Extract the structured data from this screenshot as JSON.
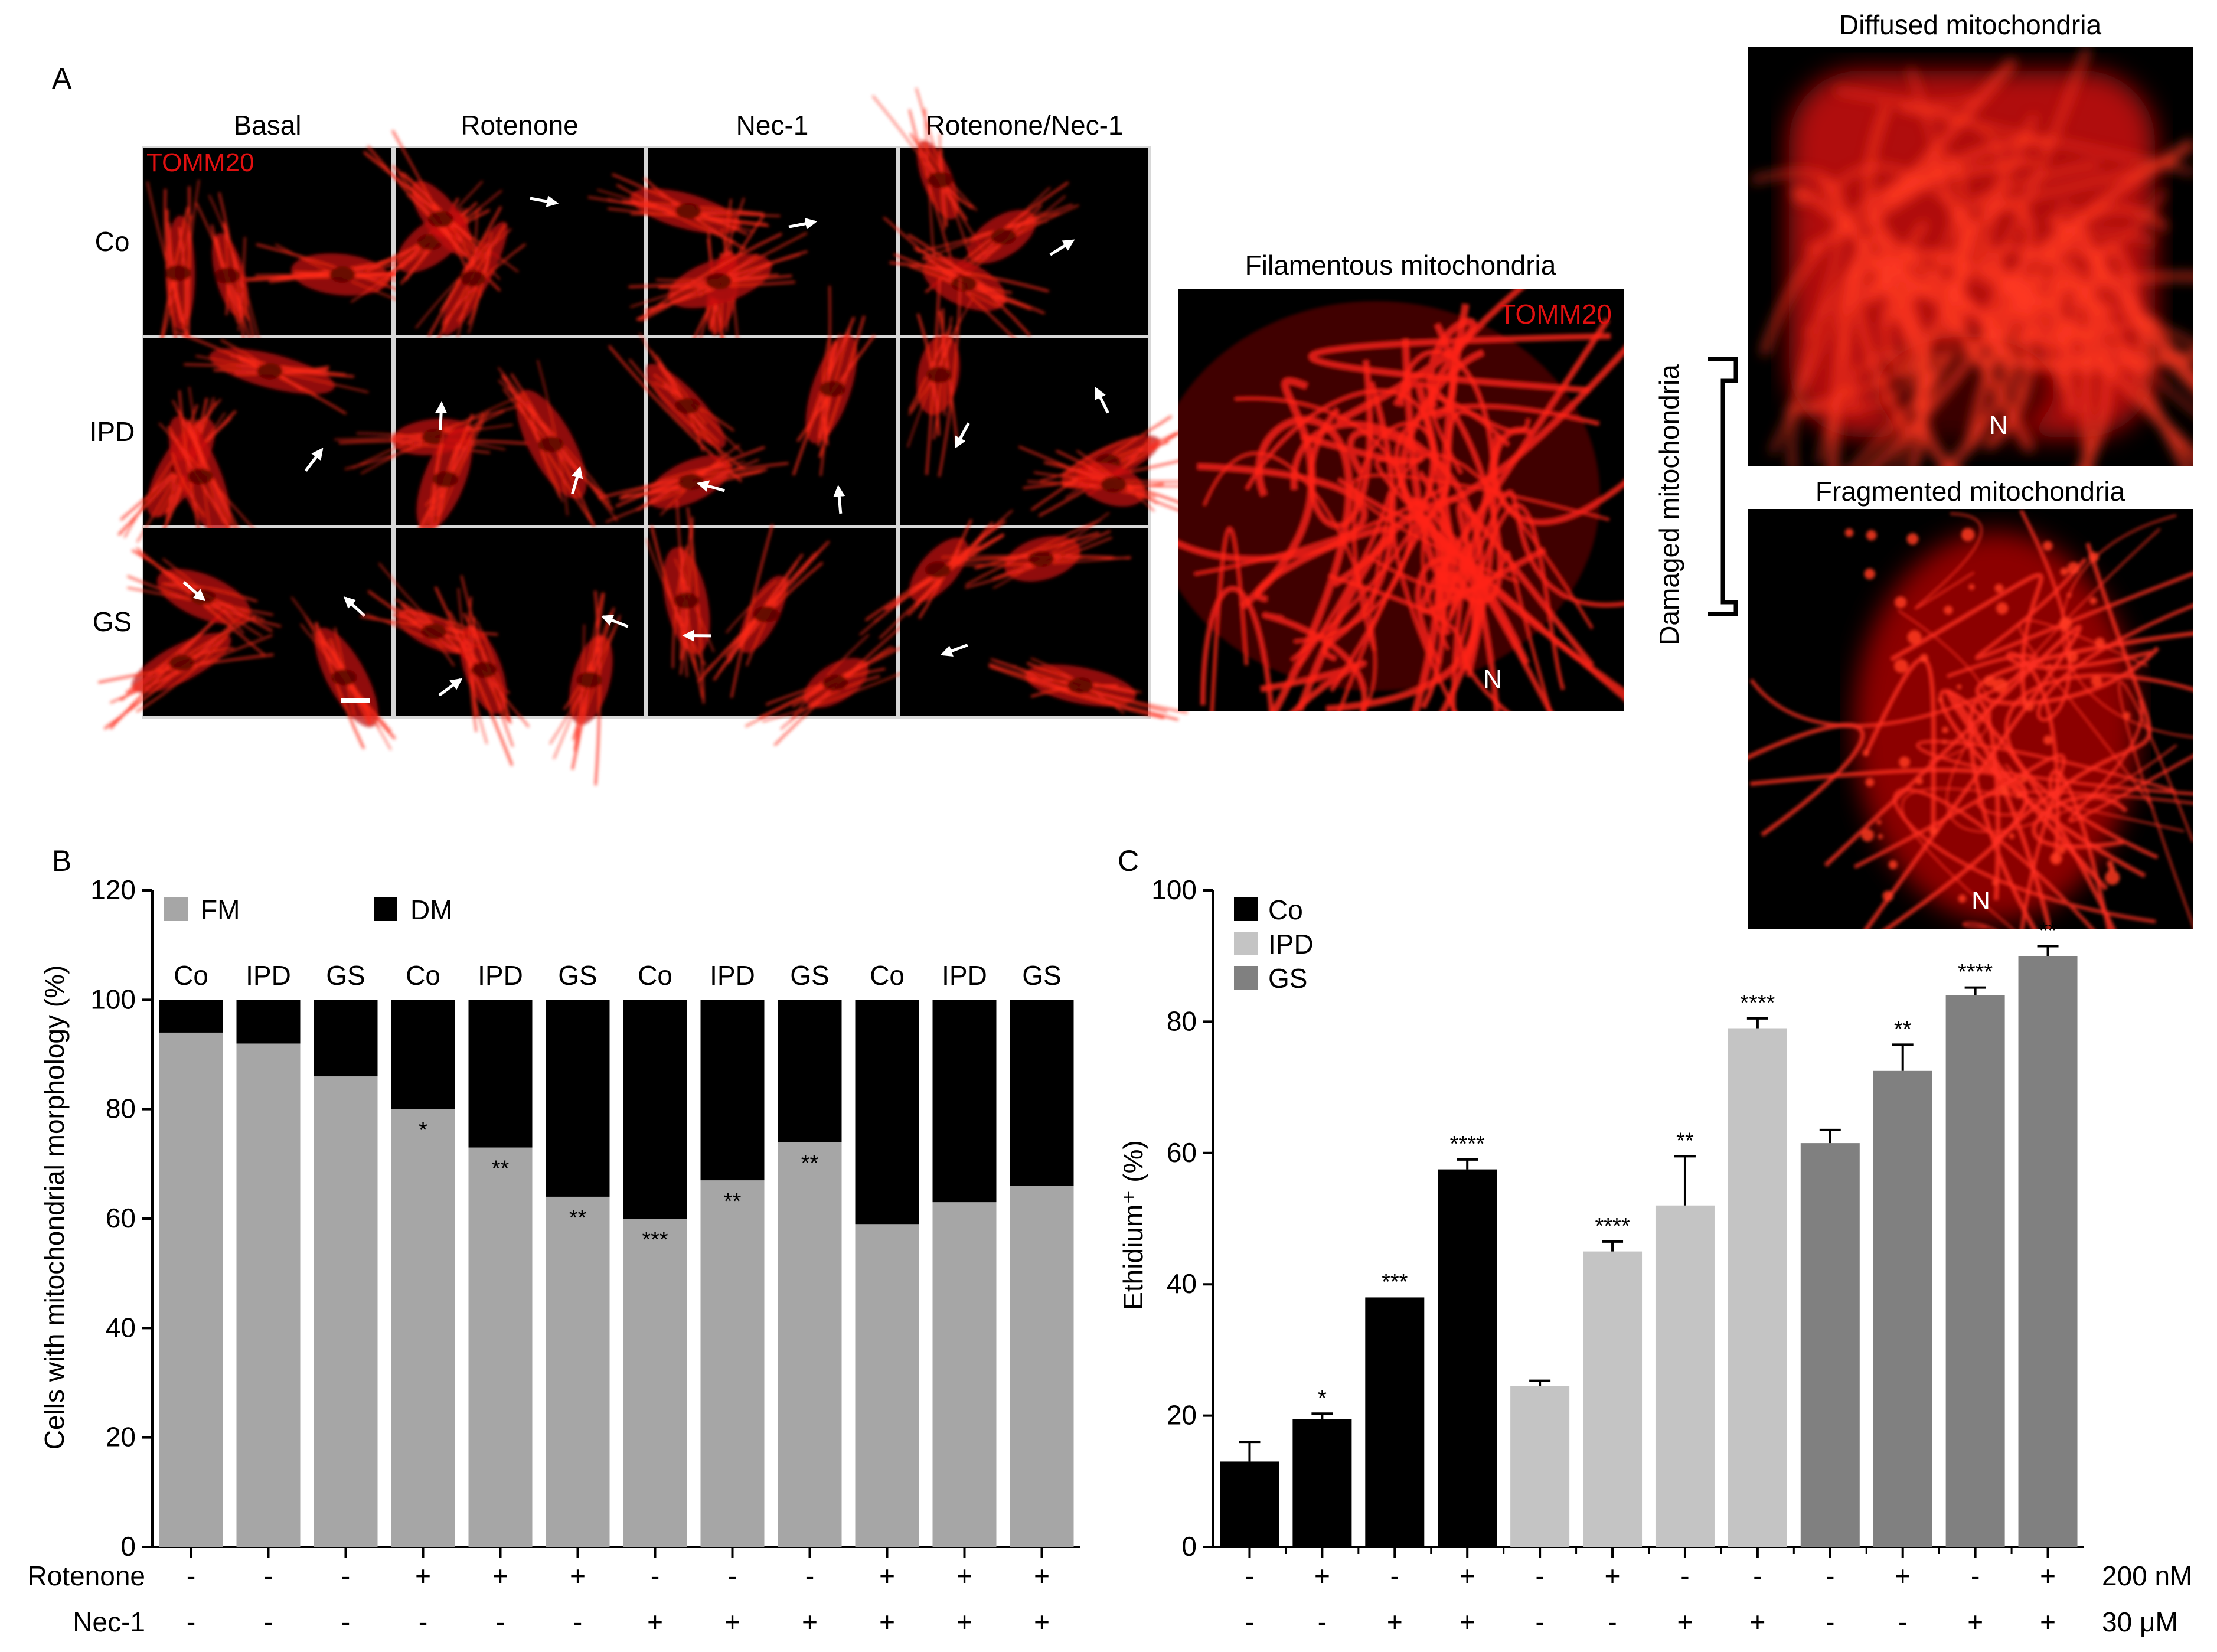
{
  "panel_a": {
    "letter": "A",
    "columns": [
      "Basal",
      "Rotenone",
      "Nec-1",
      "Rotenone/Nec-1"
    ],
    "rows": [
      "Co",
      "IPD",
      "GS"
    ],
    "stain_label": "TOMM20",
    "zoom_titles": {
      "filamentous": "Filamentous mitochondria",
      "diffused": "Diffused mitochondria",
      "fragmented": "Fragmented mitochondria",
      "damaged": "Damaged mitochondria"
    },
    "nucleus_label": "N",
    "colors": {
      "stain": "#e01010",
      "arrow": "#ffffff",
      "panel_bg": "#000000"
    }
  },
  "panel_b": {
    "letter": "B",
    "row_labels": {
      "rotenone": "Rotenone",
      "nec1": "Nec-1"
    }
  },
  "panel_c": {
    "letter": "C",
    "row_units": {
      "top": "200 nM",
      "bottom": "30 μM"
    }
  },
  "chart_data": [
    {
      "id": "B",
      "type": "bar",
      "stacked": true,
      "ylabel": "Cells with mitochondrial morphology (%)",
      "ylim": [
        0,
        120
      ],
      "yticks": [
        0,
        20,
        40,
        60,
        80,
        100,
        120
      ],
      "categories": [
        "Co",
        "IPD",
        "GS",
        "Co",
        "IPD",
        "GS",
        "Co",
        "IPD",
        "GS",
        "Co",
        "IPD",
        "GS"
      ],
      "legend": {
        "placement": "top-left"
      },
      "series": [
        {
          "name": "FM",
          "color": "#a6a6a6",
          "values": [
            94,
            92,
            86,
            80,
            73,
            64,
            60,
            67,
            74,
            59,
            63,
            66
          ]
        },
        {
          "name": "DM",
          "color": "#000000",
          "values": [
            6,
            8,
            14,
            20,
            27,
            36,
            40,
            33,
            26,
            41,
            37,
            34
          ]
        }
      ],
      "significance": [
        "",
        "",
        "",
        "*",
        "**",
        "**",
        "***",
        "**",
        "**",
        "",
        "",
        ""
      ],
      "rotenone": [
        "-",
        "-",
        "-",
        "+",
        "+",
        "+",
        "-",
        "-",
        "-",
        "+",
        "+",
        "+"
      ],
      "nec1": [
        "-",
        "-",
        "-",
        "-",
        "-",
        "-",
        "+",
        "+",
        "+",
        "+",
        "+",
        "+"
      ]
    },
    {
      "id": "C",
      "type": "bar",
      "ylabel": "Ethidium⁺ (%)",
      "ylim": [
        0,
        100
      ],
      "yticks": [
        0,
        20,
        40,
        60,
        80,
        100
      ],
      "legend": {
        "placement": "top-left",
        "entries": [
          {
            "name": "Co",
            "color": "#000000"
          },
          {
            "name": "IPD",
            "color": "#c4c4c4"
          },
          {
            "name": "GS",
            "color": "#808080"
          }
        ]
      },
      "bars": [
        {
          "group": "Co",
          "value": 13,
          "error": 3,
          "sig": ""
        },
        {
          "group": "Co",
          "value": 19.5,
          "error": 0.8,
          "sig": "*"
        },
        {
          "group": "Co",
          "value": 38,
          "error": 0,
          "sig": "***"
        },
        {
          "group": "Co",
          "value": 57.5,
          "error": 1.5,
          "sig": "****"
        },
        {
          "group": "IPD",
          "value": 24.5,
          "error": 0.8,
          "sig": ""
        },
        {
          "group": "IPD",
          "value": 45,
          "error": 1.5,
          "sig": "****"
        },
        {
          "group": "IPD",
          "value": 52,
          "error": 7.5,
          "sig": "**"
        },
        {
          "group": "IPD",
          "value": 79,
          "error": 1.5,
          "sig": "****"
        },
        {
          "group": "GS",
          "value": 61.5,
          "error": 2,
          "sig": ""
        },
        {
          "group": "GS",
          "value": 72.5,
          "error": 4,
          "sig": "**"
        },
        {
          "group": "GS",
          "value": 84,
          "error": 1.2,
          "sig": "****"
        },
        {
          "group": "GS",
          "value": 90,
          "error": 1.5,
          "sig": "**"
        }
      ],
      "row_top": [
        "-",
        "+",
        "-",
        "+",
        "-",
        "+",
        "-",
        "-",
        "-",
        "+",
        "-",
        "+"
      ],
      "row_bottom": [
        "-",
        "-",
        "+",
        "+",
        "-",
        "-",
        "+",
        "+",
        "-",
        "-",
        "+",
        "+"
      ]
    }
  ]
}
